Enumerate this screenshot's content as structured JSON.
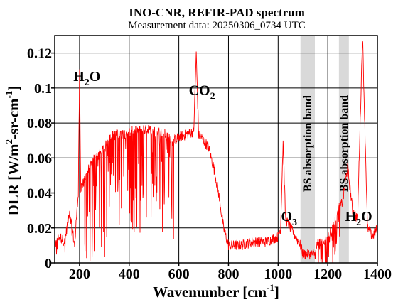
{
  "chart_data": {
    "type": "line",
    "title": "INO-CNR, REFIR-PAD spectrum",
    "subtitle": "Measurement data: 20250306_0734 UTC",
    "xlabel": "Wavenumber [cm",
    "xlabel_sup": "-1",
    "xlabel_end": "]",
    "ylabel": "DLR [W/m",
    "ylabel_sup1": "2",
    "ylabel_mid": "-sr-cm",
    "ylabel_sup2": "-1",
    "ylabel_end": "]",
    "xlim": [
      100,
      1400
    ],
    "ylim": [
      0,
      0.13
    ],
    "xticks": [
      200,
      400,
      600,
      800,
      1000,
      1200,
      1400
    ],
    "yticks": [
      0,
      0.02,
      0.04,
      0.06,
      0.08,
      0.1,
      0.12
    ],
    "ytick_labels": [
      "0",
      "0.02",
      "0.04",
      "0.06",
      "0.08",
      "0.1",
      "0.12"
    ],
    "grid": true,
    "line_color": "#ff0000",
    "band_color": "#d9d9d9",
    "series": [
      {
        "name": "",
        "x": [
          100,
          120,
          140,
          160,
          180,
          195,
          200,
          205,
          220,
          240,
          260,
          280,
          300,
          320,
          340,
          360,
          380,
          400,
          420,
          440,
          460,
          480,
          500,
          520,
          540,
          560,
          580,
          600,
          620,
          640,
          660,
          670,
          680,
          690,
          700,
          710,
          720,
          730,
          740,
          760,
          780,
          800,
          850,
          900,
          950,
          1000,
          1010,
          1020,
          1030,
          1050,
          1070,
          1090,
          1100,
          1150,
          1160,
          1180,
          1200,
          1220,
          1240,
          1260,
          1280,
          1300,
          1320,
          1340,
          1360,
          1380,
          1400
        ],
        "y": [
          0.01,
          0.015,
          0.012,
          0.03,
          0.01,
          0.04,
          0.11,
          0.043,
          0.047,
          0.055,
          0.06,
          0.062,
          0.065,
          0.072,
          0.073,
          0.074,
          0.074,
          0.075,
          0.075,
          0.076,
          0.076,
          0.076,
          0.075,
          0.075,
          0.074,
          0.072,
          0.07,
          0.072,
          0.073,
          0.074,
          0.075,
          0.12,
          0.073,
          0.072,
          0.07,
          0.068,
          0.066,
          0.06,
          0.055,
          0.04,
          0.02,
          0.01,
          0.01,
          0.012,
          0.012,
          0.015,
          0.02,
          0.07,
          0.025,
          0.02,
          0.015,
          0.01,
          0.005,
          0.005,
          0.012,
          0.01,
          0.015,
          0.02,
          0.03,
          0.035,
          0.055,
          0.03,
          0.025,
          0.13,
          0.02,
          0.015,
          0.02
        ]
      }
    ],
    "bands": [
      {
        "label": "BS absorption band",
        "x0": 1090,
        "x1": 1148
      },
      {
        "label": "BS absorption band",
        "x0": 1245,
        "x1": 1285
      }
    ],
    "annotations": [
      {
        "id": "h2o-left",
        "main": "H",
        "sub": "2",
        "rest": "O",
        "x": 175,
        "y": 0.104
      },
      {
        "id": "co2",
        "main": "CO",
        "sub": "2",
        "rest": "",
        "x": 640,
        "y": 0.096
      },
      {
        "id": "o3",
        "main": "O",
        "sub": "3",
        "rest": "",
        "x": 1012,
        "y": 0.024
      },
      {
        "id": "h2o-right",
        "main": "H",
        "sub": "2",
        "rest": "O",
        "x": 1270,
        "y": 0.024
      }
    ]
  }
}
